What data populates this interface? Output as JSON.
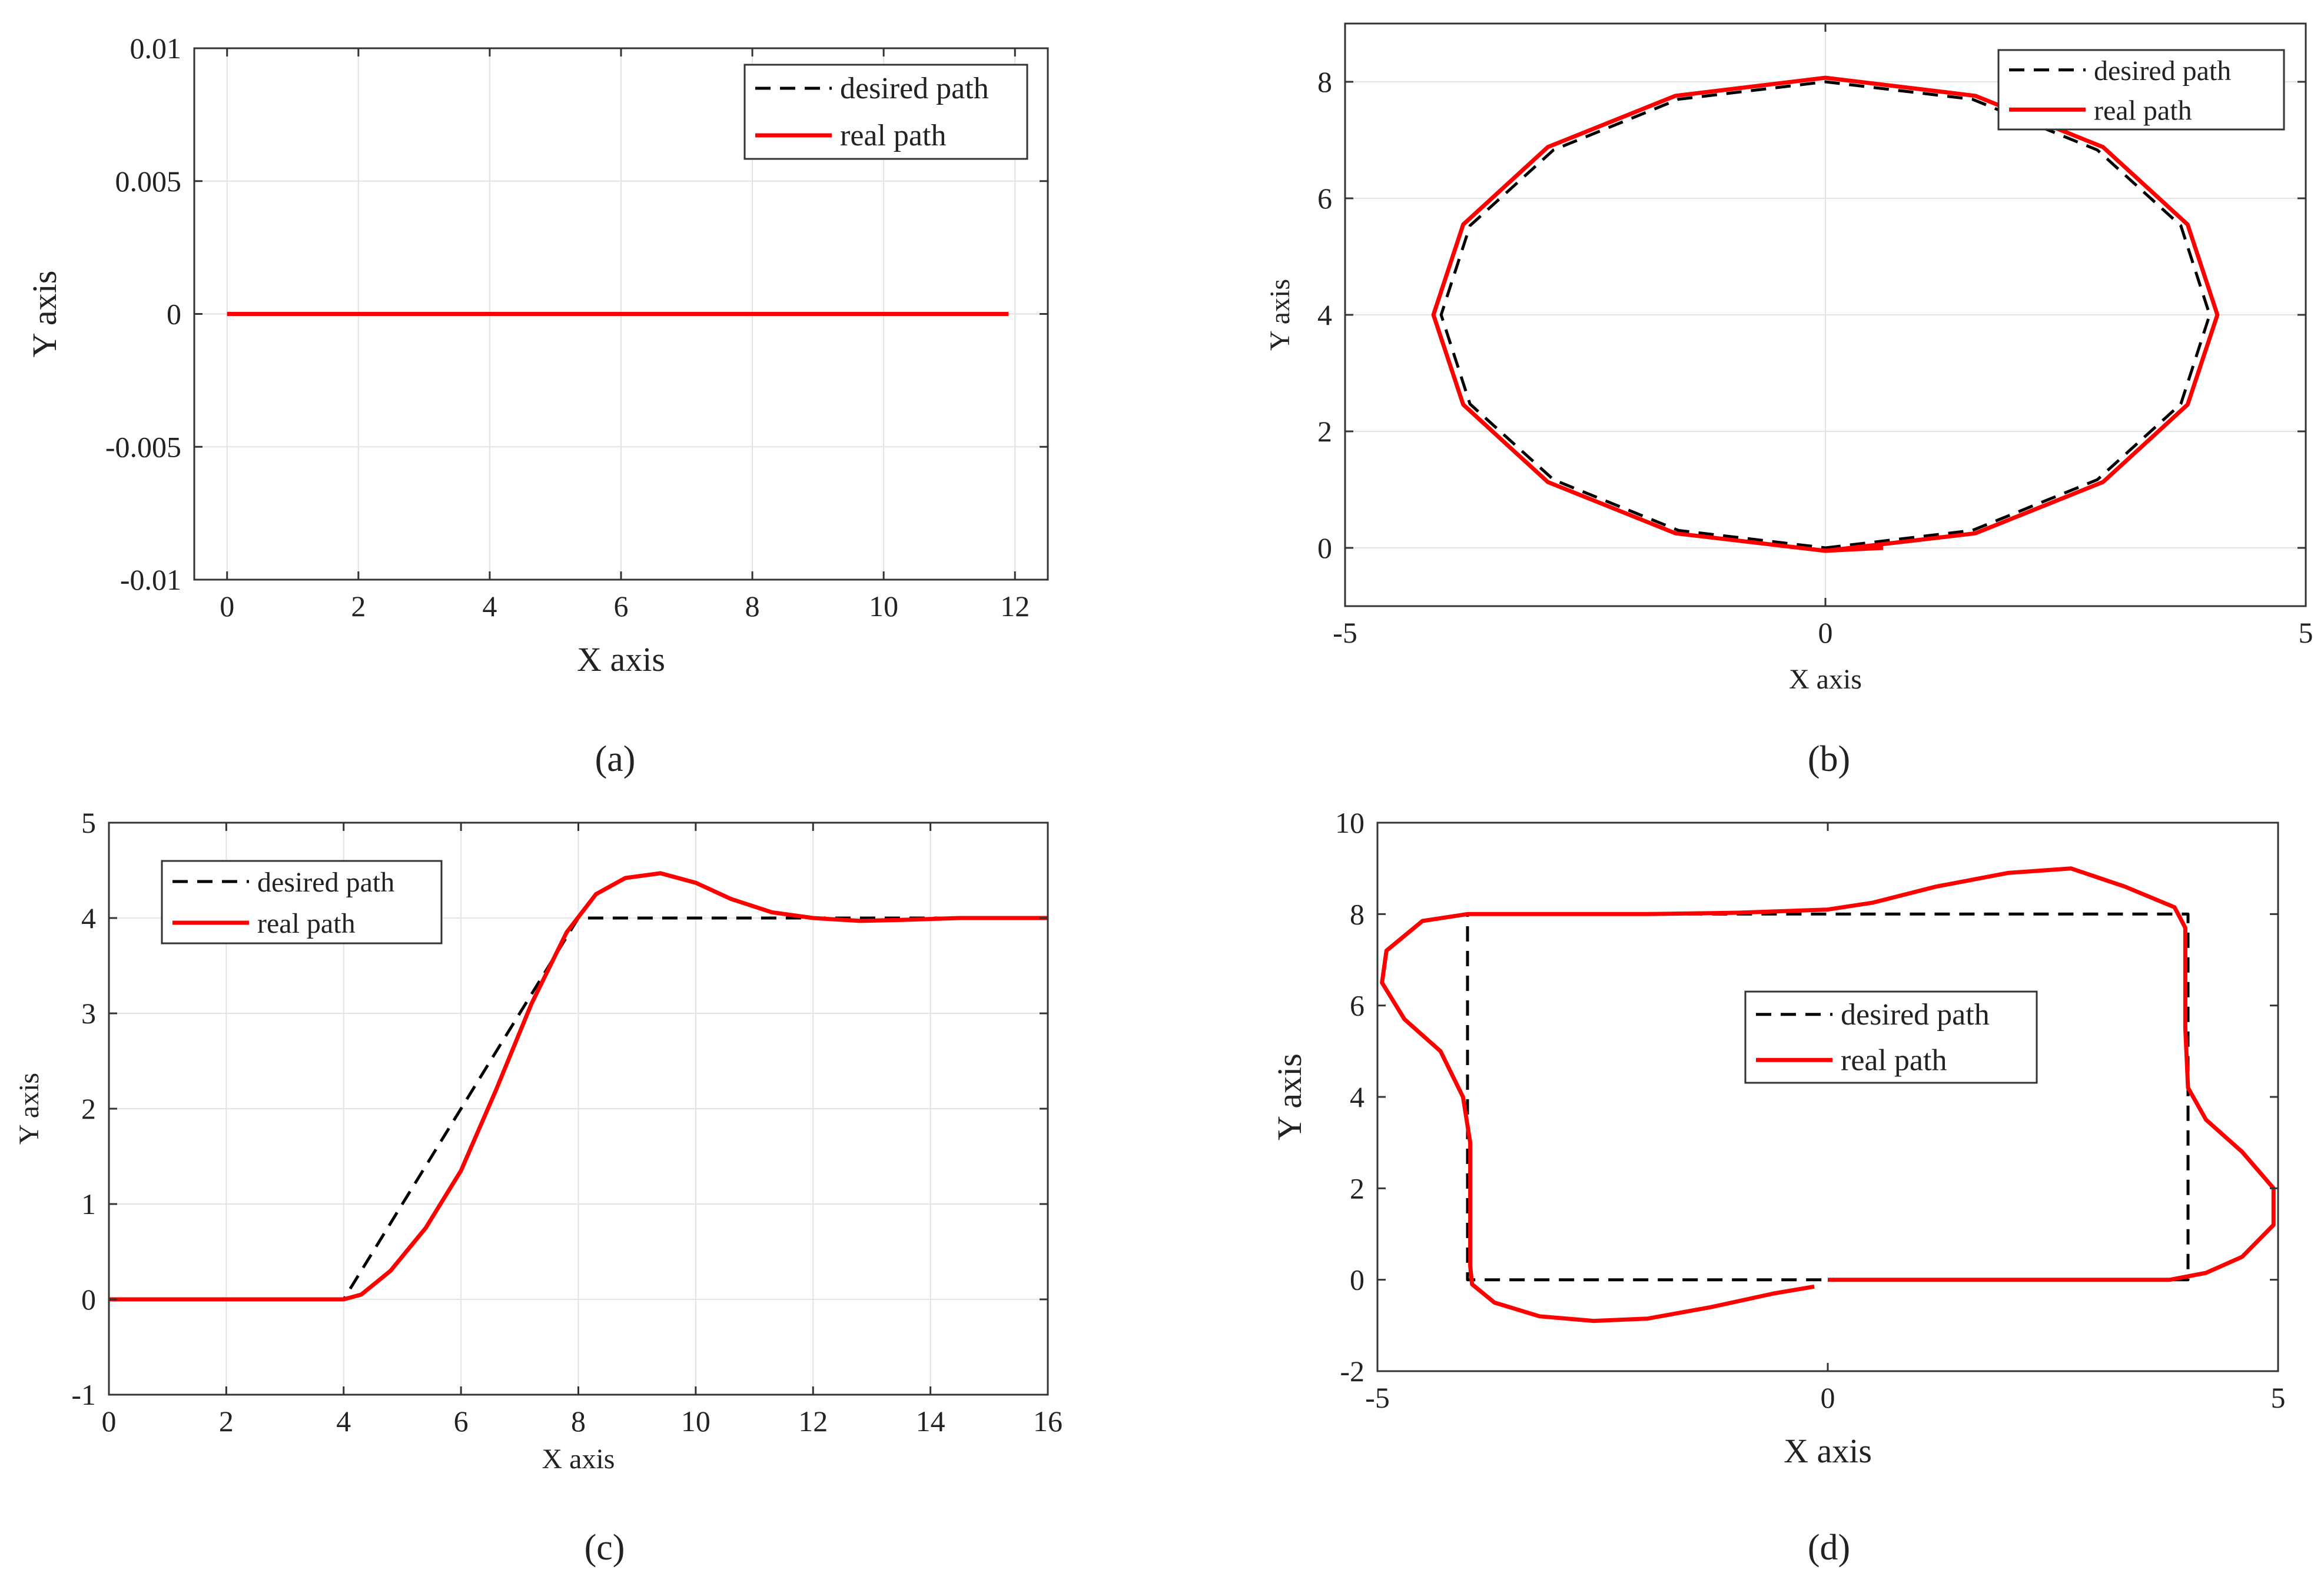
{
  "captions": [
    "(a)",
    "(b)",
    "(c)",
    "(d)"
  ],
  "chart_data": [
    {
      "type": "line",
      "panel": "(a)",
      "xlabel": "X axis",
      "ylabel": "Y axis",
      "xlim": [
        -0.5,
        12.5
      ],
      "ylim": [
        -0.01,
        0.01
      ],
      "xticks": [
        0,
        2,
        4,
        6,
        8,
        10,
        12
      ],
      "yticks": [
        -0.01,
        -0.005,
        0,
        0.005,
        0.01
      ],
      "xtick_labels": [
        "0",
        "2",
        "4",
        "6",
        "8",
        "10",
        "12"
      ],
      "ytick_labels": [
        "-0.01",
        "-0.005",
        "0",
        "0.005",
        "0.01"
      ],
      "grid": true,
      "legend": "top-right",
      "series": [
        {
          "name": "desired path",
          "style": "dashed",
          "color": "#000000",
          "points": [
            [
              0,
              0
            ],
            [
              11.9,
              0
            ]
          ]
        },
        {
          "name": "real path",
          "style": "solid",
          "color": "#ff0000",
          "points": [
            [
              0,
              0
            ],
            [
              11.9,
              0
            ]
          ]
        }
      ]
    },
    {
      "type": "line",
      "panel": "(b)",
      "xlabel": "X axis",
      "ylabel": "Y axis",
      "xlim": [
        -5,
        5
      ],
      "ylim": [
        -1,
        9
      ],
      "xticks": [
        -5,
        0,
        5
      ],
      "yticks": [
        0,
        2,
        4,
        6,
        8
      ],
      "xtick_labels": [
        "-5",
        "0",
        "5"
      ],
      "ytick_labels": [
        "0",
        "2",
        "4",
        "6",
        "8"
      ],
      "grid": true,
      "legend": "top-right",
      "series": [
        {
          "name": "desired path",
          "style": "dashed",
          "color": "#000000",
          "points": [
            [
              0,
              0
            ],
            [
              1.53,
              0.3
            ],
            [
              2.83,
              1.17
            ],
            [
              3.7,
              2.47
            ],
            [
              4,
              4
            ],
            [
              3.7,
              5.53
            ],
            [
              2.83,
              6.83
            ],
            [
              1.53,
              7.7
            ],
            [
              0,
              8
            ],
            [
              -1.53,
              7.7
            ],
            [
              -2.83,
              6.83
            ],
            [
              -3.7,
              5.53
            ],
            [
              -4,
              4
            ],
            [
              -3.7,
              2.47
            ],
            [
              -2.83,
              1.17
            ],
            [
              -1.53,
              0.3
            ],
            [
              0,
              0
            ]
          ]
        },
        {
          "name": "real path",
          "style": "solid",
          "color": "#ff0000",
          "points": [
            [
              0.6,
              0
            ],
            [
              0,
              -0.05
            ],
            [
              -1.56,
              0.25
            ],
            [
              -2.89,
              1.13
            ],
            [
              -3.77,
              2.46
            ],
            [
              -4.08,
              4
            ],
            [
              -3.77,
              5.55
            ],
            [
              -2.89,
              6.88
            ],
            [
              -1.56,
              7.76
            ],
            [
              0,
              8.07
            ],
            [
              1.56,
              7.76
            ],
            [
              2.89,
              6.88
            ],
            [
              3.77,
              5.55
            ],
            [
              4.08,
              4
            ],
            [
              3.77,
              2.46
            ],
            [
              2.89,
              1.13
            ],
            [
              1.56,
              0.25
            ],
            [
              0,
              -0.05
            ]
          ]
        }
      ]
    },
    {
      "type": "line",
      "panel": "(c)",
      "xlabel": "X axis",
      "ylabel": "Y axis",
      "xlim": [
        0,
        16
      ],
      "ylim": [
        -1,
        5
      ],
      "xticks": [
        0,
        2,
        4,
        6,
        8,
        10,
        12,
        14,
        16
      ],
      "yticks": [
        -1,
        0,
        1,
        2,
        3,
        4,
        5
      ],
      "xtick_labels": [
        "0",
        "2",
        "4",
        "6",
        "8",
        "10",
        "12",
        "14",
        "16"
      ],
      "ytick_labels": [
        "-1",
        "0",
        "1",
        "2",
        "3",
        "4",
        "5"
      ],
      "grid": true,
      "legend": "top-left",
      "series": [
        {
          "name": "desired path",
          "style": "dashed",
          "color": "#000000",
          "points": [
            [
              0,
              0
            ],
            [
              4,
              0
            ],
            [
              8,
              4
            ],
            [
              16,
              4
            ]
          ]
        },
        {
          "name": "real path",
          "style": "solid",
          "color": "#ff0000",
          "points": [
            [
              0,
              0
            ],
            [
              4,
              0
            ],
            [
              4.3,
              0.05
            ],
            [
              4.8,
              0.3
            ],
            [
              5.4,
              0.75
            ],
            [
              6,
              1.35
            ],
            [
              6.6,
              2.2
            ],
            [
              7.2,
              3.1
            ],
            [
              7.8,
              3.85
            ],
            [
              8.3,
              4.25
            ],
            [
              8.8,
              4.42
            ],
            [
              9.4,
              4.47
            ],
            [
              10,
              4.37
            ],
            [
              10.6,
              4.2
            ],
            [
              11.3,
              4.06
            ],
            [
              12,
              4.0
            ],
            [
              12.8,
              3.97
            ],
            [
              13.5,
              3.98
            ],
            [
              14.5,
              4.0
            ],
            [
              16,
              4.0
            ]
          ]
        }
      ]
    },
    {
      "type": "line",
      "panel": "(d)",
      "xlabel": "X axis",
      "ylabel": "Y axis",
      "xlim": [
        -5,
        5
      ],
      "ylim": [
        -2,
        10
      ],
      "xticks": [
        -5,
        0,
        5
      ],
      "yticks": [
        -2,
        0,
        2,
        4,
        6,
        8,
        10
      ],
      "xtick_labels": [
        "-5",
        "0",
        "5"
      ],
      "ytick_labels": [
        "-2",
        "0",
        "2",
        "4",
        "6",
        "8",
        "10"
      ],
      "grid": false,
      "legend": "center",
      "series": [
        {
          "name": "desired path",
          "style": "dashed",
          "color": "#000000",
          "points": [
            [
              0,
              0
            ],
            [
              4,
              0
            ],
            [
              4,
              8
            ],
            [
              -4,
              8
            ],
            [
              -4,
              0
            ],
            [
              0,
              0
            ]
          ]
        },
        {
          "name": "real path",
          "style": "solid",
          "color": "#ff0000",
          "points": [
            [
              0,
              0
            ],
            [
              3.8,
              0
            ],
            [
              4.2,
              0.15
            ],
            [
              4.6,
              0.5
            ],
            [
              4.95,
              1.2
            ],
            [
              4.95,
              2.0
            ],
            [
              4.6,
              2.8
            ],
            [
              4.2,
              3.5
            ],
            [
              4.0,
              4.2
            ],
            [
              3.97,
              5.5
            ],
            [
              3.97,
              7.7
            ],
            [
              3.85,
              8.15
            ],
            [
              3.3,
              8.6
            ],
            [
              2.7,
              9.0
            ],
            [
              2.0,
              8.9
            ],
            [
              1.2,
              8.6
            ],
            [
              0.5,
              8.25
            ],
            [
              0,
              8.1
            ],
            [
              -1.0,
              8.03
            ],
            [
              -2.0,
              8.0
            ],
            [
              -4.0,
              8.0
            ],
            [
              -4.5,
              7.85
            ],
            [
              -4.9,
              7.2
            ],
            [
              -4.95,
              6.5
            ],
            [
              -4.7,
              5.7
            ],
            [
              -4.3,
              5.0
            ],
            [
              -4.05,
              4.0
            ],
            [
              -3.97,
              3.0
            ],
            [
              -3.97,
              0.3
            ],
            [
              -3.95,
              -0.1
            ],
            [
              -3.7,
              -0.5
            ],
            [
              -3.2,
              -0.8
            ],
            [
              -2.6,
              -0.9
            ],
            [
              -2.0,
              -0.85
            ],
            [
              -1.3,
              -0.6
            ],
            [
              -0.6,
              -0.3
            ],
            [
              -0.15,
              -0.15
            ]
          ]
        }
      ]
    }
  ]
}
